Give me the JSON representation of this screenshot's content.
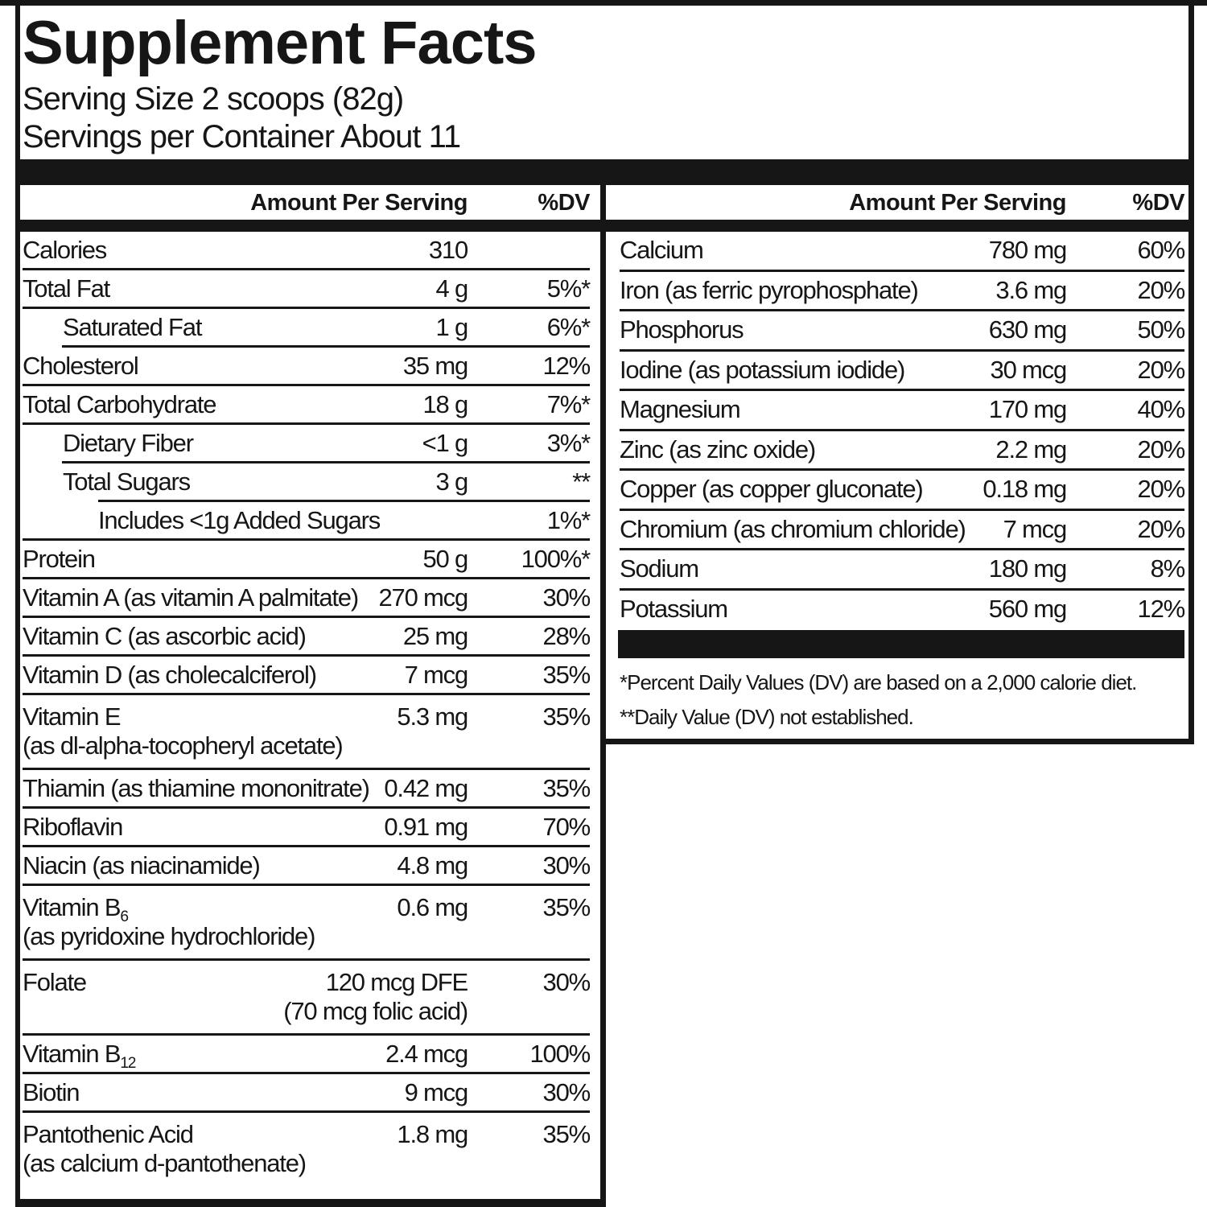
{
  "header": {
    "title": "Supplement Facts",
    "serving_size": "Serving Size 2 scoops (82g)",
    "servings_per_container": "Servings per Container About 11"
  },
  "columns_header": {
    "amount": "Amount Per Serving",
    "dv": "%DV"
  },
  "left_panel": {
    "rows": [
      {
        "label": "Calories",
        "amount": "310",
        "dv": "",
        "indent": 0,
        "sep_after": 0
      },
      {
        "label": "Total Fat",
        "amount": "4 g",
        "dv": "5%*",
        "indent": 0,
        "sep_after": 0
      },
      {
        "label": "Saturated Fat",
        "amount": "1 g",
        "dv": "6%*",
        "indent": 1,
        "sep_after": 1
      },
      {
        "label": "Cholesterol",
        "amount": "35 mg",
        "dv": "12%",
        "indent": 0,
        "sep_after": 0
      },
      {
        "label": "Total Carbohydrate",
        "amount": "18 g",
        "dv": "7%*",
        "indent": 0,
        "sep_after": 0
      },
      {
        "label": "Dietary Fiber",
        "amount": "<1 g",
        "dv": "3%*",
        "indent": 1,
        "sep_after": 1
      },
      {
        "label": "Total Sugars",
        "amount": "3 g",
        "dv": "**",
        "indent": 1,
        "sep_after": 2
      },
      {
        "label": "Includes <1g Added Sugars",
        "amount": "",
        "dv": "1%*",
        "indent": 2,
        "sep_after": 0
      },
      {
        "label": "Protein",
        "amount": "50 g",
        "dv": "100%*",
        "indent": 0,
        "sep_after": 0
      },
      {
        "label": "Vitamin A (as vitamin A palmitate)",
        "amount": "270 mcg",
        "dv": "30%",
        "indent": 0,
        "sep_after": 0
      },
      {
        "label": "Vitamin C (as ascorbic acid)",
        "amount": "25 mg",
        "dv": "28%",
        "indent": 0,
        "sep_after": 0
      },
      {
        "label": "Vitamin D (as cholecalciferol)",
        "amount": "7 mcg",
        "dv": "35%",
        "indent": 0,
        "sep_after": 0
      },
      {
        "label": "Vitamin E",
        "amount": "5.3 mg",
        "dv": "35%",
        "indent": 0,
        "line2": "(as dl-alpha-tocopheryl acetate)",
        "line2_align": "left",
        "sep_after": 0
      },
      {
        "label": "Thiamin (as thiamine mononitrate)",
        "amount": "0.42 mg",
        "dv": "35%",
        "indent": 0,
        "sep_after": 0
      },
      {
        "label": "Riboflavin",
        "amount": "0.91 mg",
        "dv": "70%",
        "indent": 0,
        "sep_after": 0
      },
      {
        "label": "Niacin (as niacinamide)",
        "amount": "4.8 mg",
        "dv": "30%",
        "indent": 0,
        "sep_after": 0
      },
      {
        "label": "Vitamin B",
        "label_sub": "6",
        "amount": "0.6 mg",
        "dv": "35%",
        "indent": 0,
        "line2": "(as pyridoxine hydrochloride)",
        "line2_align": "left",
        "sep_after": 0
      },
      {
        "label": "Folate",
        "amount": "120 mcg DFE",
        "dv": "30%",
        "indent": 0,
        "line2": "(70 mcg folic acid)",
        "line2_align": "amount",
        "sep_after": 0
      },
      {
        "label": "Vitamin B",
        "label_sub": "12",
        "amount": "2.4 mcg",
        "dv": "100%",
        "indent": 0,
        "sep_after": 0
      },
      {
        "label": "Biotin",
        "amount": "9 mcg",
        "dv": "30%",
        "indent": 0,
        "sep_after": 0
      },
      {
        "label": "Pantothenic Acid",
        "amount": "1.8 mg",
        "dv": "35%",
        "indent": 0,
        "line2": "(as calcium d-pantothenate)",
        "line2_align": "left",
        "sep_after": null
      }
    ]
  },
  "right_panel": {
    "rows": [
      {
        "label": "Calcium",
        "amount": "780 mg",
        "dv": "60%",
        "indent": 0,
        "sep_after": 0
      },
      {
        "label": "Iron (as ferric pyrophosphate)",
        "amount": "3.6 mg",
        "dv": "20%",
        "indent": 0,
        "sep_after": 0
      },
      {
        "label": "Phosphorus",
        "amount": "630 mg",
        "dv": "50%",
        "indent": 0,
        "sep_after": 0
      },
      {
        "label": "Iodine (as potassium iodide)",
        "amount": "30 mcg",
        "dv": "20%",
        "indent": 0,
        "sep_after": 0
      },
      {
        "label": "Magnesium",
        "amount": "170 mg",
        "dv": "40%",
        "indent": 0,
        "sep_after": 0
      },
      {
        "label": "Zinc (as zinc oxide)",
        "amount": "2.2 mg",
        "dv": "20%",
        "indent": 0,
        "sep_after": 0
      },
      {
        "label": "Copper (as copper gluconate)",
        "amount": "0.18 mg",
        "dv": "20%",
        "indent": 0,
        "sep_after": 0
      },
      {
        "label": "Chromium (as chromium chloride)",
        "amount": "7 mcg",
        "dv": "20%",
        "indent": 0,
        "sep_after": 0
      },
      {
        "label": "Sodium",
        "amount": "180 mg",
        "dv": "8%",
        "indent": 0,
        "sep_after": 0
      },
      {
        "label": "Potassium",
        "amount": "560 mg",
        "dv": "12%",
        "indent": 0,
        "sep_after": null
      }
    ],
    "footnotes": [
      "*Percent Daily Values (DV) are based on a 2,000 calorie diet.",
      "**Daily Value (DV) not established."
    ]
  },
  "colors": {
    "ink": "#161616",
    "background": "#ffffff"
  }
}
